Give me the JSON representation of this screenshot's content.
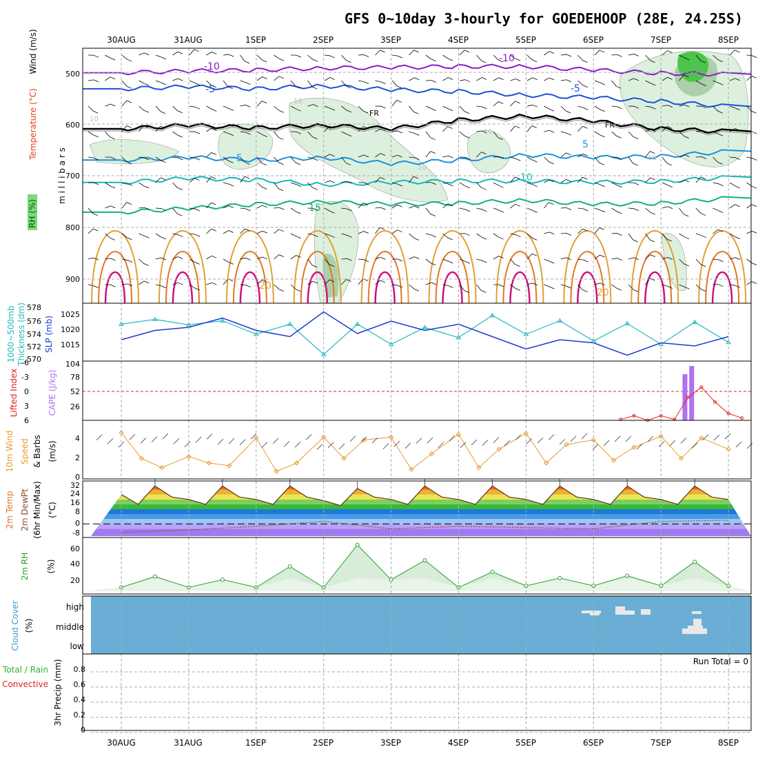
{
  "title": "GFS 0~10day 3-hourly for GOEDEHOOP (28E, 24.25S)",
  "dates": [
    "30AUG",
    "31AUG",
    "1SEP",
    "2SEP",
    "3SEP",
    "4SEP",
    "5SEP",
    "6SEP",
    "7SEP",
    "8SEP"
  ],
  "colors": {
    "wind_barb": "#000000",
    "temp_minus10": "#8a1ac8",
    "temp_minus5": "#1a50d8",
    "freezing": "#000000",
    "temp_5": "#1a90e0",
    "temp_10": "#10b8c0",
    "temp_15": "#10b080",
    "temp_20": "#e0a030",
    "temp_25": "#e07820",
    "temp_30": "#d0107a",
    "rh": "#8bd88b",
    "slp": "#1a3ad0",
    "thickness": "#20b8c0",
    "lifted_index": "#e02020",
    "cape": "#b070f0",
    "wind10": "#e89a30",
    "temp_max_fill": "#e07020",
    "rh2m": "#2aa02a",
    "cloud_bg": "#6aaed6",
    "cloud": "#e8e8e8"
  },
  "panels": {
    "upper_air": {
      "ylabel_rh": "RH (%)",
      "ylabel_temp": "Temperature (°C)",
      "ylabel_wind": "Wind (m/s)",
      "ylabel_pressure": "m i l l i b a r s",
      "pressure_ticks": [
        "500",
        "600",
        "700",
        "800",
        "900"
      ],
      "contour_labels": [
        "-10",
        "-10",
        "-5",
        "-5",
        "FR",
        "FR",
        "5",
        "5",
        "10",
        "10",
        "15",
        "20",
        "20",
        "10",
        "10",
        "10",
        "10"
      ]
    },
    "pressure": {
      "ylabel_thick": "Thickness (dm)",
      "ylabel_thick_top": "1000~500mb",
      "ylabel_slp": "SLP (mb)",
      "thick_ticks": [
        "578",
        "576",
        "574",
        "572",
        "570"
      ],
      "slp_ticks": [
        "1025",
        "1020",
        "1015"
      ]
    },
    "stability": {
      "ylabel_li": "Lifted Index",
      "ylabel_cape": "CAPE (J/kg)",
      "li_ticks": [
        "-6",
        "-3",
        "0",
        "3",
        "6"
      ],
      "cape_ticks": [
        "104",
        "78",
        "52",
        "26"
      ]
    },
    "wind10": {
      "ylabel_a": "10m Wind",
      "ylabel_b": "Speed",
      "ylabel_c": "& Barbs",
      "ylabel_units": "(m/s)",
      "ticks": [
        "4",
        "2",
        "0"
      ]
    },
    "temp2m": {
      "ylabel_a": "2m Temp",
      "ylabel_b": "2m DewPt",
      "ylabel_c": "(6hr Min/Max)",
      "ylabel_units": "(°C)",
      "ticks": [
        "32",
        "24",
        "16",
        "8",
        "0",
        "-8"
      ]
    },
    "rh2m": {
      "ylabel": "2m RH",
      "ylabel_units": "(%)",
      "ticks": [
        "60",
        "40",
        "20"
      ]
    },
    "cloud": {
      "ylabel": "Cloud Cover",
      "ylabel_units": "(%)",
      "ticks": [
        "high",
        "middle",
        "low"
      ]
    },
    "precip": {
      "ylabel_a": "Total / Rain",
      "ylabel_b": "Convective",
      "ylabel_c": "3hr Precip (mm)",
      "ticks": [
        "0.8",
        "0.6",
        "0.4",
        "0.2",
        "0"
      ],
      "run_total": "Run Total = 0"
    }
  },
  "chart_data": [
    {
      "type": "line",
      "name": "upper-air time-height section",
      "title": "GFS 0~10day 3-hourly for GOEDEHOOP (28E, 24.25S)",
      "x_dates": [
        "30AUG",
        "31AUG",
        "1SEP",
        "2SEP",
        "3SEP",
        "4SEP",
        "5SEP",
        "6SEP",
        "7SEP",
        "8SEP"
      ],
      "ylabel": "millibars",
      "ylim": [
        450,
        940
      ],
      "y_reversed": true,
      "isotherms": [
        {
          "label": "-10",
          "days": [
            0,
            1,
            2,
            3,
            4,
            5,
            6,
            7,
            8,
            9
          ],
          "pressure": [
            497,
            494,
            492,
            488,
            487,
            485,
            485,
            492,
            498,
            500
          ]
        },
        {
          "label": "-5",
          "days": [
            0,
            1,
            2,
            3,
            4,
            5,
            6,
            7,
            8,
            9
          ],
          "pressure": [
            528,
            524,
            528,
            522,
            530,
            533,
            540,
            545,
            552,
            562
          ]
        },
        {
          "label": "FR",
          "days": [
            0,
            1,
            2,
            3,
            4,
            5,
            6,
            7,
            8,
            9
          ],
          "pressure": [
            605,
            598,
            603,
            598,
            605,
            588,
            580,
            590,
            605,
            610
          ]
        },
        {
          "label": "5",
          "days": [
            0,
            1,
            2,
            3,
            4,
            5,
            6,
            7,
            8,
            9
          ],
          "pressure": [
            665,
            660,
            665,
            660,
            672,
            665,
            655,
            660,
            658,
            648
          ]
        },
        {
          "label": "10",
          "days": [
            0,
            1,
            2,
            3,
            4,
            5,
            6,
            7,
            8,
            9
          ],
          "pressure": [
            708,
            700,
            703,
            712,
            708,
            705,
            705,
            708,
            706,
            698
          ]
        },
        {
          "label": "15",
          "days": [
            0,
            1,
            2,
            3,
            4,
            5,
            6,
            7,
            8,
            9
          ],
          "pressure": [
            765,
            758,
            750,
            745,
            750,
            748,
            742,
            750,
            748,
            738
          ]
        }
      ]
    },
    {
      "type": "line",
      "name": "1000~500mb thickness and SLP",
      "x_dates": [
        "30AUG",
        "31AUG",
        "1SEP",
        "2SEP",
        "3SEP",
        "4SEP",
        "5SEP",
        "6SEP",
        "7SEP",
        "8SEP"
      ],
      "series": [
        {
          "name": "Thickness (dm)",
          "ylim": [
            570,
            578
          ],
          "x": [
            0,
            0.5,
            1,
            1.5,
            2,
            2.5,
            3,
            3.5,
            4,
            4.5,
            5,
            5.5,
            6,
            6.5,
            7,
            7.5,
            8,
            8.5,
            9
          ],
          "values": [
            575.5,
            576.2,
            575.4,
            576.0,
            574.0,
            575.5,
            571.0,
            575.5,
            572.5,
            575.0,
            573.5,
            576.8,
            574.0,
            576.0,
            573.0,
            575.6,
            572.5,
            575.8,
            572.8
          ]
        },
        {
          "name": "SLP (mb)",
          "ylim": [
            1011,
            1027
          ],
          "x": [
            0,
            0.5,
            1,
            1.5,
            2,
            2.5,
            3,
            3.5,
            4,
            4.5,
            5,
            5.5,
            6,
            6.5,
            7,
            7.5,
            8,
            8.5,
            9
          ],
          "values": [
            1017,
            1020,
            1021,
            1024,
            1020,
            1018,
            1026,
            1019,
            1023,
            1020,
            1022,
            1018,
            1014,
            1017,
            1016,
            1012,
            1016,
            1015,
            1018
          ]
        }
      ]
    },
    {
      "type": "bar",
      "name": "Lifted Index and CAPE",
      "x_dates": [
        "30AUG",
        "31AUG",
        "1SEP",
        "2SEP",
        "3SEP",
        "4SEP",
        "5SEP",
        "6SEP",
        "7SEP",
        "8SEP"
      ],
      "series": [
        {
          "name": "Lifted Index",
          "ylim": [
            6,
            -6
          ],
          "x": [
            7.4,
            7.6,
            7.8,
            8.0,
            8.2,
            8.4,
            8.6,
            8.8,
            9.0,
            9.2
          ],
          "values": [
            5.8,
            5.0,
            6.0,
            5.0,
            5.8,
            1.0,
            -1.2,
            2.0,
            4.5,
            5.5
          ]
        },
        {
          "name": "CAPE (J/kg)",
          "ylim": [
            0,
            104
          ],
          "x": [
            8.35,
            8.45
          ],
          "values": [
            85,
            100
          ]
        }
      ]
    },
    {
      "type": "line",
      "name": "10m wind speed",
      "ylabel": "(m/s)",
      "ylim": [
        0,
        5
      ],
      "x": [
        0,
        0.3,
        0.6,
        1,
        1.3,
        1.6,
        2,
        2.3,
        2.6,
        3,
        3.3,
        3.6,
        4,
        4.3,
        4.6,
        5,
        5.3,
        5.6,
        6,
        6.3,
        6.6,
        7,
        7.3,
        7.6,
        8,
        8.3,
        8.6,
        9
      ],
      "values": [
        4.8,
        2.0,
        1.0,
        2.2,
        1.5,
        1.2,
        4.2,
        0.6,
        1.5,
        4.3,
        2.0,
        4.0,
        4.3,
        0.8,
        2.5,
        4.6,
        1.0,
        3.0,
        4.7,
        1.5,
        3.5,
        4.0,
        1.8,
        3.2,
        4.4,
        2.0,
        4.2,
        3.0
      ]
    },
    {
      "type": "area",
      "name": "2m temperature",
      "ylabel": "(°C)",
      "ylim": [
        -10,
        34
      ],
      "series": [
        {
          "name": "2m Temp",
          "x": [
            0,
            0.25,
            0.5,
            0.75,
            1,
            1.25,
            1.5,
            1.75,
            2,
            2.25,
            2.5,
            2.75,
            3,
            3.25,
            3.5,
            3.75,
            4,
            4.25,
            4.5,
            4.75,
            5,
            5.25,
            5.5,
            5.75,
            6,
            6.25,
            6.5,
            6.75,
            7,
            7.25,
            7.5,
            7.75,
            8,
            8.25,
            8.5,
            8.75,
            9
          ],
          "values": [
            24,
            16,
            31,
            22,
            20,
            16,
            31,
            22,
            20,
            16,
            31,
            22,
            19,
            15,
            29,
            22,
            20,
            16,
            31,
            22,
            20,
            16,
            31,
            22,
            20,
            16,
            31,
            22,
            20,
            16,
            31,
            22,
            20,
            16,
            31,
            22,
            20
          ]
        },
        {
          "name": "2m DewPt",
          "x": [
            0,
            1,
            2,
            3,
            4,
            5,
            6,
            7,
            8,
            9
          ],
          "values": [
            -7,
            -5,
            -2,
            2,
            -4,
            -2,
            -3,
            -4,
            2,
            3
          ]
        }
      ]
    },
    {
      "type": "area",
      "name": "2m RH",
      "ylabel": "(%)",
      "ylim": [
        5,
        70
      ],
      "x": [
        0,
        0.5,
        1,
        1.5,
        2,
        2.5,
        3,
        3.5,
        4,
        4.5,
        5,
        5.5,
        6,
        6.5,
        7,
        7.5,
        8,
        8.5,
        9
      ],
      "values": [
        10,
        24,
        10,
        20,
        10,
        37,
        10,
        65,
        20,
        45,
        10,
        30,
        12,
        22,
        12,
        25,
        12,
        43,
        12
      ]
    },
    {
      "type": "heatmap",
      "name": "Cloud cover",
      "levels": [
        "high",
        "middle",
        "low"
      ],
      "cells": [
        {
          "level": "high",
          "day": 6.8,
          "value": 40
        },
        {
          "level": "high",
          "day": 7.3,
          "value": 60
        },
        {
          "level": "high",
          "day": 7.6,
          "value": 40
        },
        {
          "level": "high",
          "day": 8.5,
          "value": 30
        },
        {
          "level": "middle",
          "day": 8.5,
          "value": 60
        }
      ]
    },
    {
      "type": "bar",
      "name": "3hr Precip",
      "ylabel": "3hr Precip (mm)",
      "ylim": [
        0,
        1
      ],
      "x": [],
      "values": []
    }
  ]
}
